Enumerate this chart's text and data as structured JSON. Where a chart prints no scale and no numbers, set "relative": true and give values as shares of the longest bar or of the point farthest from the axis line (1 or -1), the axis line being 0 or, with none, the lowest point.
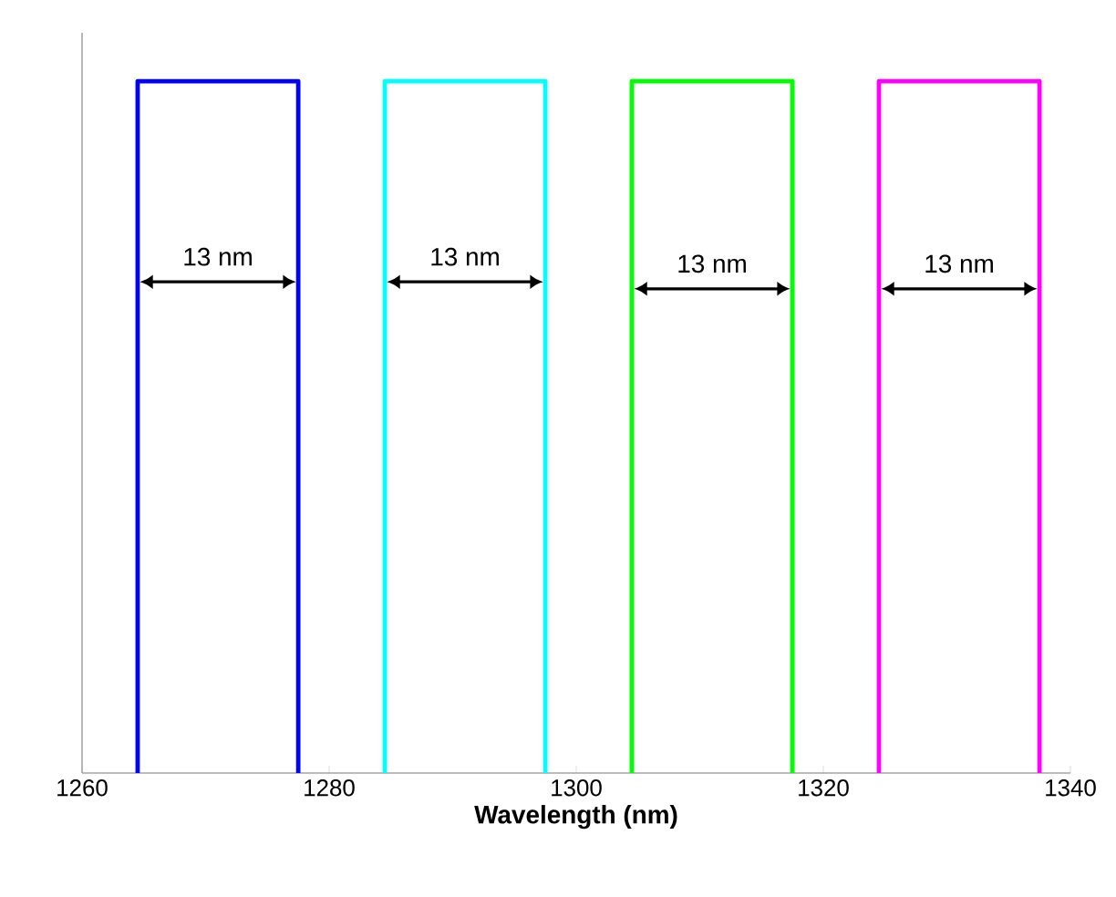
{
  "chart_data": {
    "type": "line",
    "relative": true,
    "xlabel": "Wavelength (nm)",
    "xlim": [
      1260,
      1340
    ],
    "xticks": [
      1260,
      1280,
      1300,
      1320,
      1340
    ],
    "tick_labels": "x",
    "series": [
      {
        "color": "#0000ff",
        "x": [
          1264.5,
          1264.5,
          1277.5,
          1277.5
        ],
        "values": [
          0,
          1,
          1,
          0
        ]
      },
      {
        "color": "#00ffff",
        "x": [
          1284.5,
          1284.5,
          1297.5,
          1297.5
        ],
        "values": [
          0,
          1,
          1,
          0
        ]
      },
      {
        "color": "#00ff00",
        "x": [
          1304.5,
          1304.5,
          1317.5,
          1317.5
        ],
        "values": [
          0,
          1,
          1,
          0
        ]
      },
      {
        "color": "#ff00ff",
        "x": [
          1324.5,
          1324.5,
          1337.5,
          1337.5
        ],
        "values": [
          0,
          1,
          1,
          0
        ]
      }
    ],
    "annotations": [
      "13 nm",
      "13 nm",
      "13 nm",
      "13 nm"
    ]
  }
}
